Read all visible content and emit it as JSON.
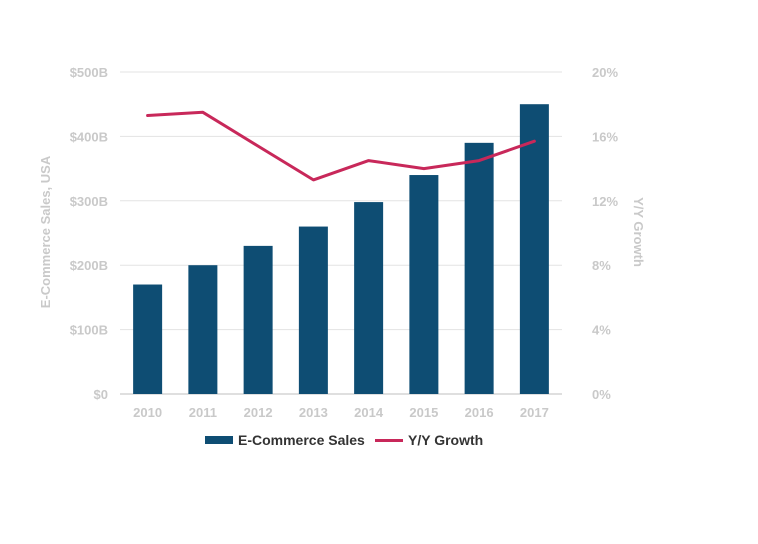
{
  "chart_data": {
    "type": "bar",
    "categories": [
      "2010",
      "2011",
      "2012",
      "2013",
      "2014",
      "2015",
      "2016",
      "2017"
    ],
    "series": [
      {
        "name": "E-Commerce Sales",
        "type": "bar",
        "axis": "left",
        "color": "#0e4d73",
        "values": [
          170,
          200,
          230,
          260,
          298,
          340,
          390,
          450
        ]
      },
      {
        "name": "Y/Y Growth",
        "type": "line",
        "axis": "right",
        "color": "#c8285a",
        "values": [
          17.3,
          17.5,
          15.4,
          13.3,
          14.5,
          14.0,
          14.5,
          15.7
        ]
      }
    ],
    "left_axis": {
      "label": "E-Commerce Sales, USA",
      "range": [
        0,
        500
      ],
      "ticks": [
        0,
        100,
        200,
        300,
        400,
        500
      ],
      "tick_labels": [
        "$0",
        "$100B",
        "$200B",
        "$300B",
        "$400B",
        "$500B"
      ]
    },
    "right_axis": {
      "label": "Y/Y Growth",
      "range": [
        0,
        20
      ],
      "ticks": [
        0,
        4,
        8,
        12,
        16,
        20
      ],
      "tick_labels": [
        "0%",
        "4%",
        "8%",
        "12%",
        "16%",
        "20%"
      ]
    },
    "grid": true,
    "legend_position": "bottom",
    "legend": [
      "E-Commerce Sales",
      "Y/Y Growth"
    ]
  }
}
